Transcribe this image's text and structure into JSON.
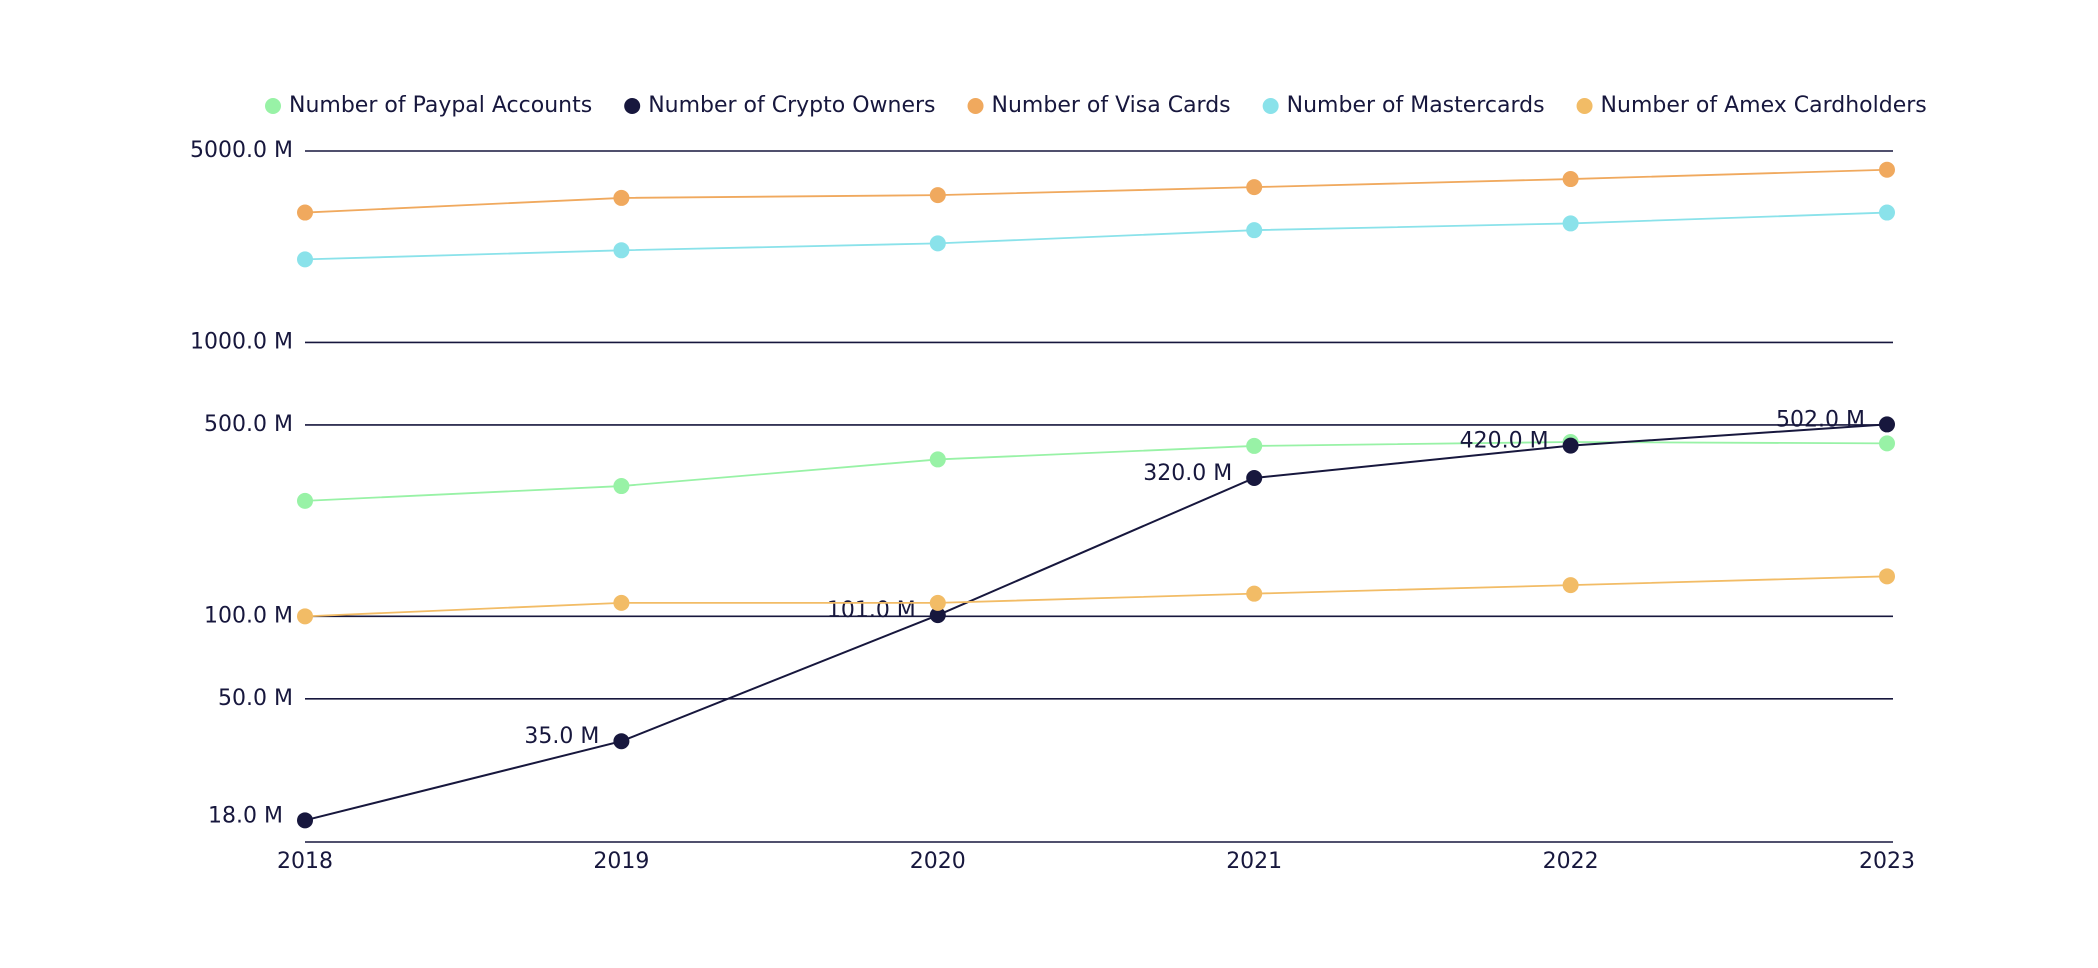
{
  "chart_data": {
    "type": "line",
    "categories": [
      "2018",
      "2019",
      "2020",
      "2021",
      "2022",
      "2023"
    ],
    "series": [
      {
        "name": "Number of Paypal Accounts",
        "color": "#98f2a6",
        "values": [
          264,
          299,
          374,
          419,
          433,
          428
        ]
      },
      {
        "name": "Number of Crypto Owners",
        "color": "#17173d",
        "values": [
          18,
          35,
          101,
          320,
          420,
          502
        ],
        "value_labels": [
          "18.0 M",
          "35.0 M",
          "101.0 M",
          "320.0 M",
          "420.0 M",
          "502.0 M"
        ]
      },
      {
        "name": "Number of Visa Cards",
        "color": "#f0a95e",
        "values": [
          2980,
          3370,
          3450,
          3690,
          3950,
          4270
        ]
      },
      {
        "name": "Number of Mastercards",
        "color": "#8ae2ea",
        "values": [
          2010,
          2170,
          2300,
          2570,
          2720,
          2980
        ]
      },
      {
        "name": "Number of Amex Cardholders",
        "color": "#f2bc66",
        "values": [
          100,
          112,
          112,
          121,
          130,
          140
        ]
      }
    ],
    "log_scale": true,
    "ylim": [
      15,
      5000
    ],
    "yticks": [
      {
        "value": 50,
        "label": "50.0 M"
      },
      {
        "value": 100,
        "label": "100.0 M"
      },
      {
        "value": 500,
        "label": "500.0 M"
      },
      {
        "value": 1000,
        "label": "1000.0 M"
      },
      {
        "value": 5000,
        "label": "5000.0 M"
      }
    ],
    "grid": true
  }
}
